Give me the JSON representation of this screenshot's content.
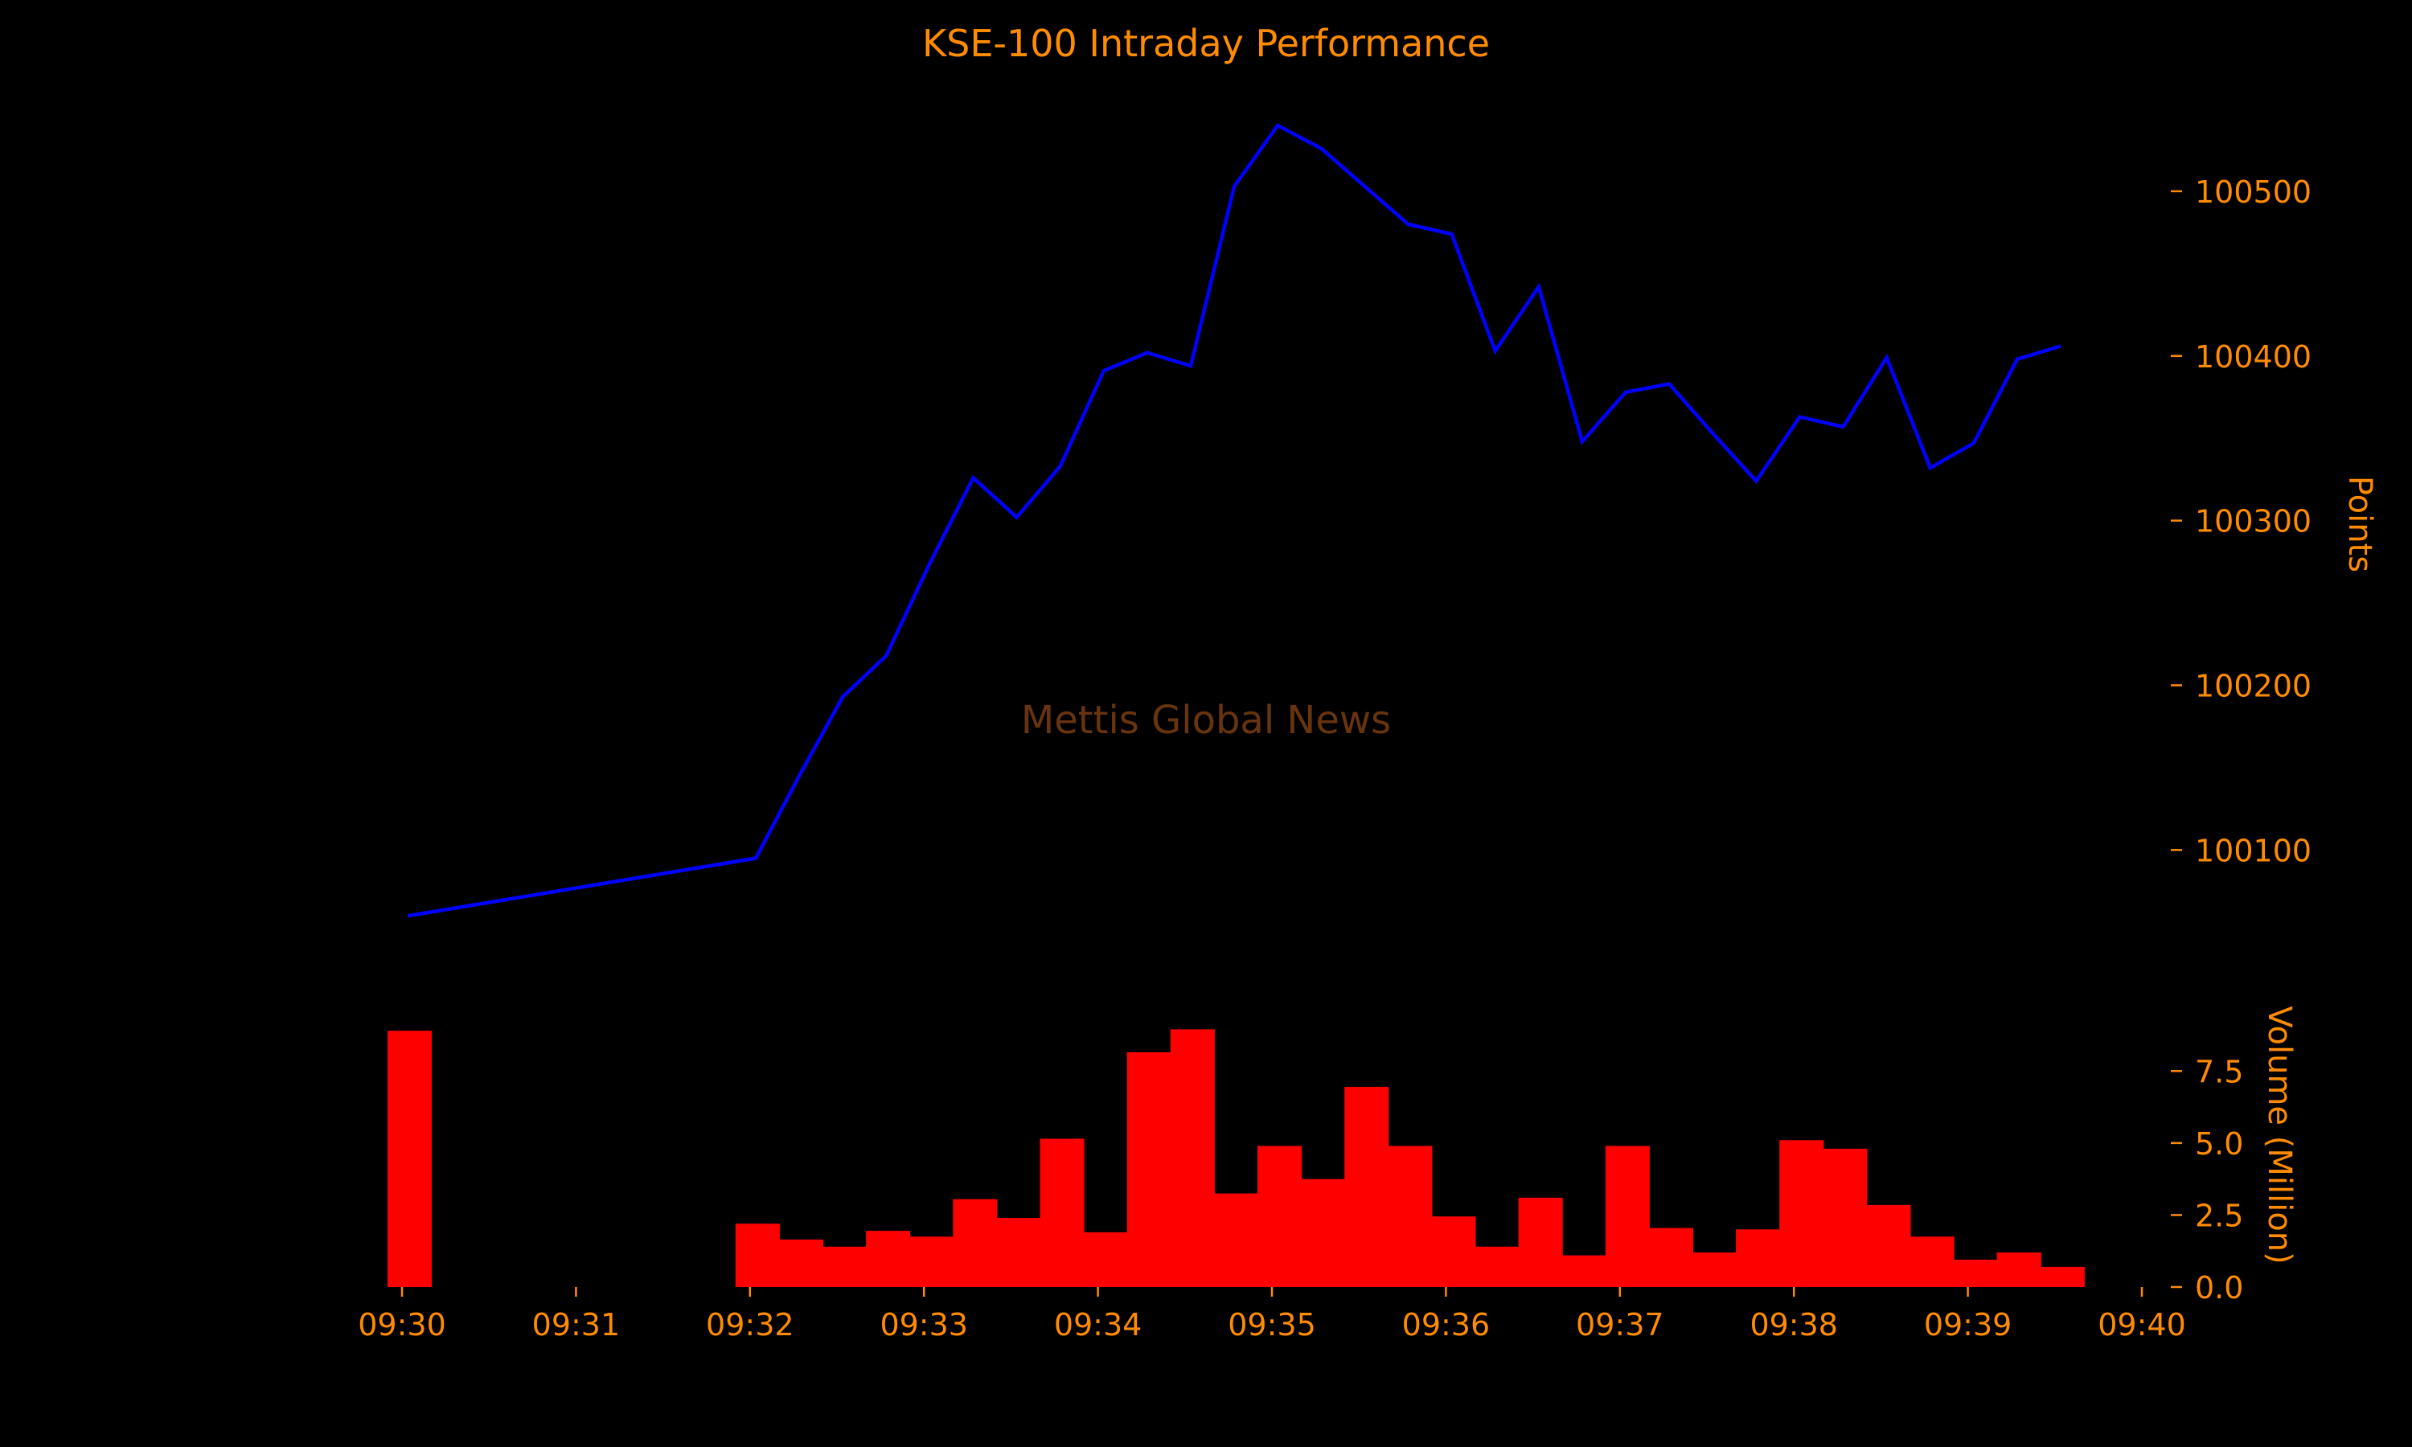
{
  "chart_data": {
    "title": "KSE-100 Intraday Performance",
    "watermark": "Mettis Global News",
    "x_axis": {
      "range": [
        "09:30",
        "09:40"
      ],
      "tick_labels": [
        "09:30",
        "09:31",
        "09:32",
        "09:33",
        "09:34",
        "09:35",
        "09:36",
        "09:37",
        "09:38",
        "09:39",
        "09:40"
      ]
    },
    "charts": [
      {
        "type": "line",
        "ylabel": "Points",
        "yaxis_side": "right",
        "ylim": [
          100045,
          100560
        ],
        "yticks": [
          100100,
          100200,
          100300,
          100400,
          100500
        ],
        "series": [
          {
            "color": "#0000ff",
            "x": [
              "09:30:02",
              "09:32:02",
              "09:32:17",
              "09:32:32",
              "09:32:47",
              "09:33:02",
              "09:33:17",
              "09:33:32",
              "09:33:47",
              "09:34:02",
              "09:34:17",
              "09:34:32",
              "09:34:47",
              "09:35:02",
              "09:35:17",
              "09:35:32",
              "09:35:47",
              "09:36:02",
              "09:36:17",
              "09:36:32",
              "09:36:47",
              "09:37:02",
              "09:37:17",
              "09:37:32",
              "09:37:47",
              "09:38:02",
              "09:38:17",
              "09:38:32",
              "09:38:47",
              "09:39:02",
              "09:39:17",
              "09:39:32"
            ],
            "y": [
              100060,
              100095,
              100145,
              100193,
              100218,
              100274,
              100326,
              100302,
              100333,
              100391,
              100402,
              100394,
              100503,
              100540,
              100526,
              100503,
              100480,
              100474,
              100403,
              100442,
              100348,
              100378,
              100383,
              100353,
              100324,
              100363,
              100357,
              100399,
              100332,
              100347,
              100398,
              100406
            ]
          }
        ]
      },
      {
        "type": "bar",
        "ylabel": "Volume (Million)",
        "yaxis_side": "right",
        "ylim": [
          0,
          10.3
        ],
        "yticks": [
          "0.0",
          "2.5",
          "5.0",
          "7.5"
        ],
        "bar_width_seconds": 15,
        "color": "#ff0000",
        "x": [
          "09:30:00",
          "09:32:00",
          "09:32:15",
          "09:32:30",
          "09:32:45",
          "09:33:00",
          "09:33:15",
          "09:33:30",
          "09:33:45",
          "09:34:00",
          "09:34:15",
          "09:34:30",
          "09:34:45",
          "09:35:00",
          "09:35:15",
          "09:35:30",
          "09:35:45",
          "09:36:00",
          "09:36:15",
          "09:36:30",
          "09:36:45",
          "09:37:00",
          "09:37:15",
          "09:37:30",
          "09:37:45",
          "09:38:00",
          "09:38:15",
          "09:38:30",
          "09:38:45",
          "09:39:00",
          "09:39:15",
          "09:39:30"
        ],
        "values": [
          8.9,
          2.2,
          1.65,
          1.4,
          1.95,
          1.75,
          3.05,
          2.4,
          5.15,
          1.9,
          8.15,
          8.95,
          3.25,
          4.9,
          3.75,
          6.95,
          4.9,
          2.45,
          1.4,
          3.1,
          1.1,
          4.9,
          2.05,
          1.2,
          2.0,
          5.1,
          4.8,
          2.85,
          1.75,
          0.95,
          1.2,
          0.7
        ]
      }
    ]
  }
}
